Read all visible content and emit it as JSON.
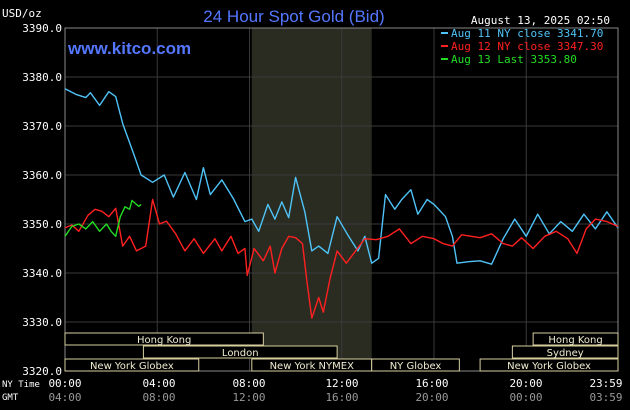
{
  "chart_data": {
    "type": "line",
    "title": "24 Hour Spot Gold (Bid)",
    "timestamp": "August 13, 2025 02:50",
    "watermark": "www.kitco.com",
    "ylabel": "USD/oz",
    "ylim": [
      3320,
      3390
    ],
    "yticks": [
      "3390.0",
      "3380.0",
      "3370.0",
      "3360.0",
      "3350.0",
      "3340.0",
      "3330.0",
      "3320.0"
    ],
    "grid": true,
    "legend_position": "top-right",
    "x_time_labels": [
      "00:00",
      "04:00",
      "08:00",
      "12:00",
      "16:00",
      "20:00",
      "23:59"
    ],
    "x_gmt_labels": [
      "04:00",
      "08:00",
      "12:00",
      "16:00",
      "20:00",
      "00:00",
      "03:59"
    ],
    "ny_time_label": "NY Time",
    "gmt_label": "GMT",
    "highlight_band_hours": [
      8.1,
      13.3
    ],
    "series": [
      {
        "name": "Aug 11 NY close 3341.70",
        "color": "#4fc3f7",
        "points": [
          [
            0,
            3377.6
          ],
          [
            0.5,
            3376.4
          ],
          [
            0.9,
            3375.8
          ],
          [
            1.1,
            3376.8
          ],
          [
            1.5,
            3374.2
          ],
          [
            1.9,
            3377
          ],
          [
            2.2,
            3376
          ],
          [
            2.5,
            3370.5
          ],
          [
            3,
            3364
          ],
          [
            3.3,
            3360
          ],
          [
            3.8,
            3358.5
          ],
          [
            4.3,
            3360
          ],
          [
            4.7,
            3355.5
          ],
          [
            5.2,
            3360.5
          ],
          [
            5.7,
            3355
          ],
          [
            6,
            3361.5
          ],
          [
            6.3,
            3356
          ],
          [
            6.8,
            3359
          ],
          [
            7.3,
            3355.2
          ],
          [
            7.8,
            3350.5
          ],
          [
            8.1,
            3351
          ],
          [
            8.4,
            3348.5
          ],
          [
            8.8,
            3354
          ],
          [
            9.1,
            3351
          ],
          [
            9.4,
            3354.5
          ],
          [
            9.7,
            3351.3
          ],
          [
            10,
            3359.5
          ],
          [
            10.4,
            3352.5
          ],
          [
            10.7,
            3344.5
          ],
          [
            11,
            3345.5
          ],
          [
            11.4,
            3344
          ],
          [
            11.8,
            3351.5
          ],
          [
            12.3,
            3347.5
          ],
          [
            12.7,
            3344.5
          ],
          [
            13,
            3347.5
          ],
          [
            13.3,
            3342
          ],
          [
            13.6,
            3343
          ],
          [
            13.9,
            3356
          ],
          [
            14.3,
            3353
          ],
          [
            14.6,
            3355
          ],
          [
            15,
            3357
          ],
          [
            15.3,
            3352
          ],
          [
            15.7,
            3355
          ],
          [
            16,
            3354
          ],
          [
            16.5,
            3351.5
          ],
          [
            16.8,
            3347.5
          ],
          [
            17,
            3342
          ],
          [
            17.5,
            3342.3
          ],
          [
            18,
            3342.5
          ],
          [
            18.5,
            3341.8
          ],
          [
            19,
            3347
          ],
          [
            19.5,
            3351
          ],
          [
            20,
            3347.5
          ],
          [
            20.5,
            3352
          ],
          [
            21,
            3348
          ],
          [
            21.5,
            3350.5
          ],
          [
            22,
            3348.5
          ],
          [
            22.5,
            3352
          ],
          [
            23,
            3349
          ],
          [
            23.5,
            3352.5
          ],
          [
            23.98,
            3349.2
          ]
        ]
      },
      {
        "name": "Aug 12 NY close 3347.30",
        "color": "#ff2020",
        "points": [
          [
            0,
            3349.2
          ],
          [
            0.3,
            3349.8
          ],
          [
            0.6,
            3348.5
          ],
          [
            1,
            3351.8
          ],
          [
            1.3,
            3353
          ],
          [
            1.6,
            3352.6
          ],
          [
            1.9,
            3351.5
          ],
          [
            2.2,
            3353.2
          ],
          [
            2.5,
            3345.5
          ],
          [
            2.8,
            3347.5
          ],
          [
            3.1,
            3344.5
          ],
          [
            3.5,
            3345.5
          ],
          [
            3.8,
            3355
          ],
          [
            4.1,
            3350
          ],
          [
            4.4,
            3350.6
          ],
          [
            4.8,
            3348
          ],
          [
            5.2,
            3344.5
          ],
          [
            5.6,
            3347
          ],
          [
            6,
            3344
          ],
          [
            6.5,
            3347
          ],
          [
            6.8,
            3344.5
          ],
          [
            7.2,
            3347.5
          ],
          [
            7.5,
            3344
          ],
          [
            7.8,
            3345
          ],
          [
            7.9,
            3339.5
          ],
          [
            8.2,
            3345
          ],
          [
            8.6,
            3342.5
          ],
          [
            8.9,
            3345.5
          ],
          [
            9.1,
            3340
          ],
          [
            9.4,
            3345
          ],
          [
            9.7,
            3347.5
          ],
          [
            10,
            3347.2
          ],
          [
            10.3,
            3346
          ],
          [
            10.5,
            3338
          ],
          [
            10.7,
            3330.8
          ],
          [
            11,
            3335
          ],
          [
            11.2,
            3332
          ],
          [
            11.5,
            3339
          ],
          [
            11.8,
            3344.5
          ],
          [
            12.2,
            3342
          ],
          [
            12.6,
            3344.5
          ],
          [
            13,
            3347
          ],
          [
            13.5,
            3346.8
          ],
          [
            14,
            3347.5
          ],
          [
            14.5,
            3349
          ],
          [
            15,
            3346
          ],
          [
            15.5,
            3347.5
          ],
          [
            16,
            3347
          ],
          [
            16.4,
            3346
          ],
          [
            16.8,
            3345.5
          ],
          [
            17.2,
            3347.8
          ],
          [
            18,
            3347.2
          ],
          [
            18.5,
            3348
          ],
          [
            19,
            3346
          ],
          [
            19.4,
            3345.5
          ],
          [
            19.8,
            3347.2
          ],
          [
            20.3,
            3345
          ],
          [
            20.8,
            3347.5
          ],
          [
            21.3,
            3348.5
          ],
          [
            21.8,
            3347
          ],
          [
            22.2,
            3344
          ],
          [
            22.6,
            3349
          ],
          [
            23,
            3351
          ],
          [
            23.5,
            3350.5
          ],
          [
            23.98,
            3349.5
          ]
        ]
      },
      {
        "name": "Aug 13 Last 3353.80",
        "color": "#22dd22",
        "points": [
          [
            0,
            3347.5
          ],
          [
            0.3,
            3349.5
          ],
          [
            0.6,
            3350
          ],
          [
            0.9,
            3349
          ],
          [
            1.2,
            3350.5
          ],
          [
            1.5,
            3348.5
          ],
          [
            1.8,
            3350
          ],
          [
            2,
            3348.5
          ],
          [
            2.2,
            3347.5
          ],
          [
            2.4,
            3351.5
          ],
          [
            2.6,
            3353.5
          ],
          [
            2.8,
            3353
          ],
          [
            2.9,
            3354.8
          ],
          [
            3.2,
            3353.6
          ],
          [
            3.3,
            3354
          ]
        ]
      }
    ]
  },
  "sessions": [
    {
      "label": "Hong Kong",
      "start": 0,
      "end": 8.6
    },
    {
      "label": "London",
      "start": 3.4,
      "end": 11.8
    },
    {
      "label": "New York Globex",
      "start": 0,
      "end": 5.8
    },
    {
      "label": "New York NYMEX",
      "start": 8.1,
      "end": 13.3
    },
    {
      "label": "NY Globex",
      "start": 13.3,
      "end": 17.1
    },
    {
      "label": "Hong Kong",
      "start": 20.3,
      "end": 23.98
    },
    {
      "label": "Sydney",
      "start": 19.4,
      "end": 23.98
    },
    {
      "label": "New York Globex",
      "start": 18,
      "end": 23.98
    }
  ]
}
